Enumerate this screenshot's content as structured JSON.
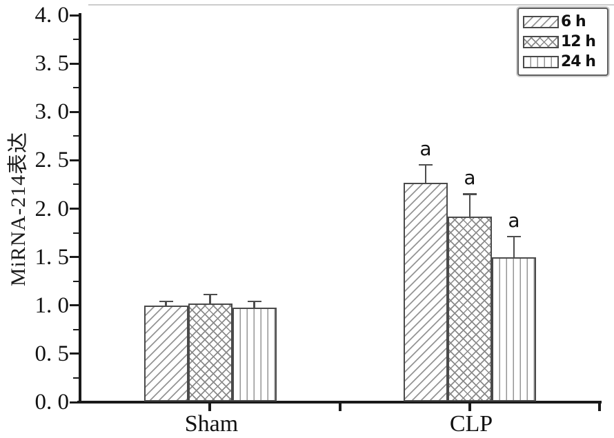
{
  "figure": {
    "y_tick_labels": [
      "0. 0",
      "0. 5",
      "1. 0",
      "1. 5",
      "2. 0",
      "2. 5",
      "3. 0",
      "3. 5",
      "4. 0"
    ]
  },
  "legend": {
    "items": [
      {
        "label": "6 h",
        "pattern": "diagonal",
        "swatch_icon": "diagonal-hatch-swatch"
      },
      {
        "label": "12 h",
        "pattern": "crosshatch",
        "swatch_icon": "crosshatch-swatch"
      },
      {
        "label": "24 h",
        "pattern": "vertical",
        "swatch_icon": "vertical-lines-swatch"
      }
    ],
    "position": "top-right"
  },
  "chart_data": {
    "type": "bar",
    "title": "",
    "xlabel": "",
    "ylabel": "MiRNA-214表达",
    "categories": [
      "Sham",
      "CLP"
    ],
    "series": [
      {
        "name": "6 h",
        "pattern": "diagonal",
        "values": [
          1.0,
          2.27
        ],
        "errors": [
          0.05,
          0.19
        ]
      },
      {
        "name": "12 h",
        "pattern": "crosshatch",
        "values": [
          1.02,
          1.92
        ],
        "errors": [
          0.1,
          0.24
        ]
      },
      {
        "name": "24 h",
        "pattern": "vertical",
        "values": [
          0.98,
          1.5
        ],
        "errors": [
          0.07,
          0.22
        ]
      }
    ],
    "annotations": [
      {
        "text": "a",
        "category_index": 1,
        "series_index": 0
      },
      {
        "text": "a",
        "category_index": 1,
        "series_index": 1
      },
      {
        "text": "a",
        "category_index": 1,
        "series_index": 2
      }
    ],
    "ylim": [
      0.0,
      4.0
    ],
    "y_major_step": 0.5,
    "y_minor_step": 0.25,
    "grid": false,
    "error_bars": "upper",
    "legend_position": "top-right"
  },
  "colors": {
    "axis": "#1a1a1a",
    "bar_outline": "#4a4a4a",
    "hatch": "#8f8f8f",
    "text": "#111111",
    "background": "#ffffff",
    "legend_border": "#5f5f5f"
  }
}
